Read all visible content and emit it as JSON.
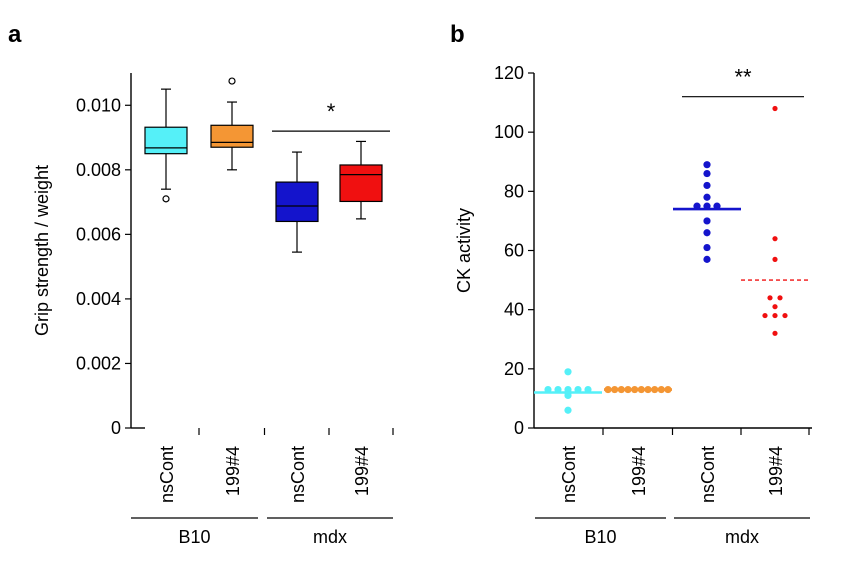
{
  "chart_data": [
    {
      "panel_label": "a",
      "type": "box",
      "ylabel": "Grip strength / weight",
      "ylim": [
        0,
        0.011
      ],
      "yticks": [
        "0",
        "0.002",
        "0.004",
        "0.006",
        "0.008",
        "0.010"
      ],
      "ytick_values": [
        0,
        0.002,
        0.004,
        0.006,
        0.008,
        0.01
      ],
      "categories": [
        "nsCont",
        "199#4",
        "nsCont",
        "199#4"
      ],
      "groups": [
        {
          "label": "B10",
          "span": [
            0,
            1
          ]
        },
        {
          "label": "mdx",
          "span": [
            2,
            3
          ]
        }
      ],
      "colors": [
        "#55f0f8",
        "#f49634",
        "#1414cc",
        "#f01010"
      ],
      "boxes": [
        {
          "whisker_low": 0.0074,
          "q1": 0.0085,
          "median": 0.00868,
          "q3": 0.00932,
          "whisker_high": 0.0105,
          "outliers": [
            0.0071
          ]
        },
        {
          "whisker_low": 0.008,
          "q1": 0.0087,
          "median": 0.00885,
          "q3": 0.00938,
          "whisker_high": 0.0101,
          "outliers": [
            0.01075
          ]
        },
        {
          "whisker_low": 0.00545,
          "q1": 0.0064,
          "median": 0.00688,
          "q3": 0.00762,
          "whisker_high": 0.00855,
          "outliers": []
        },
        {
          "whisker_low": 0.00648,
          "q1": 0.00702,
          "median": 0.00785,
          "q3": 0.00815,
          "whisker_high": 0.00888,
          "outliers": []
        }
      ],
      "significance": {
        "label": "*",
        "from": 2,
        "to": 3,
        "y": 0.0092
      }
    },
    {
      "panel_label": "b",
      "type": "scatter",
      "ylabel": "CK activity",
      "ylim": [
        0,
        120
      ],
      "yticks": [
        "0",
        "20",
        "40",
        "60",
        "80",
        "100",
        "120"
      ],
      "ytick_values": [
        0,
        20,
        40,
        60,
        80,
        100,
        120
      ],
      "categories": [
        "nsCont",
        "199#4",
        "nsCont",
        "199#4"
      ],
      "groups": [
        {
          "label": "B10",
          "span": [
            0,
            1
          ]
        },
        {
          "label": "mdx",
          "span": [
            2,
            3
          ]
        }
      ],
      "colors": [
        "#55f0f8",
        "#f49634",
        "#1414cc",
        "#f01010"
      ],
      "series": [
        {
          "values": [
            19,
            13,
            13,
            13,
            13,
            13,
            12,
            11,
            6
          ],
          "mean": 12,
          "mean_style": "solid"
        },
        {
          "values": [
            13,
            13,
            13,
            13,
            13,
            13,
            13,
            13,
            13,
            13
          ],
          "mean": 13,
          "mean_style": "solid"
        },
        {
          "values": [
            89,
            86,
            82,
            78,
            75,
            75,
            75,
            70,
            66,
            61,
            57
          ],
          "mean": 74,
          "mean_style": "solid"
        },
        {
          "values": [
            108,
            64,
            57,
            44,
            44,
            41,
            38,
            38,
            38,
            32
          ],
          "mean": 50,
          "mean_style": "dashed"
        }
      ],
      "significance": {
        "label": "**",
        "from": 2,
        "to": 3,
        "y": 112
      }
    }
  ]
}
